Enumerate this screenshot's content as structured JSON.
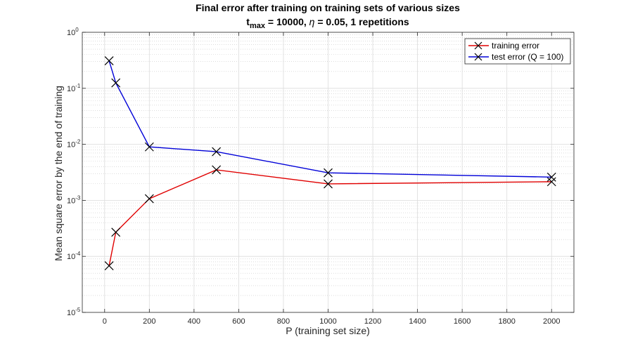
{
  "chart_data": {
    "type": "line",
    "title_line1": "Final error after training on training sets of various sizes",
    "title_line2": {
      "t": "t",
      "t_sub": "max",
      "rest1": " = 10000, ",
      "eta": "η",
      "rest2": " = 0.05, 1 repetitions"
    },
    "xlabel": "P (training set size)",
    "ylabel": "Mean square error by the end of training",
    "xlim": [
      -100,
      2100
    ],
    "ylim": [
      1e-05,
      1
    ],
    "yscale": "log",
    "grid": true,
    "legend_location": "top-right",
    "x_ticks": [
      0,
      200,
      400,
      600,
      800,
      1000,
      1200,
      1400,
      1600,
      1800,
      2000
    ],
    "x_tick_labels": [
      "0",
      "200",
      "400",
      "600",
      "800",
      "1000",
      "1200",
      "1400",
      "1600",
      "1800",
      "2000"
    ],
    "y_ticks": [
      {
        "exp": -5,
        "base": "10",
        "sup": "-5"
      },
      {
        "exp": -4,
        "base": "10",
        "sup": "-4"
      },
      {
        "exp": -3,
        "base": "10",
        "sup": "-3"
      },
      {
        "exp": -2,
        "base": "10",
        "sup": "-2"
      },
      {
        "exp": -1,
        "base": "10",
        "sup": "-1"
      },
      {
        "exp": 0,
        "base": "10",
        "sup": "0"
      }
    ],
    "x": [
      20,
      50,
      200,
      500,
      1000,
      2000
    ],
    "series": [
      {
        "name": "training error",
        "color": "#e00000",
        "marker": "x",
        "values": [
          6.8e-05,
          0.00027,
          0.00107,
          0.0035,
          0.00197,
          0.00215
        ]
      },
      {
        "name": "test error (Q = 100)",
        "color": "#0000d8",
        "marker": "x",
        "values": [
          0.31,
          0.125,
          0.009,
          0.0074,
          0.0031,
          0.0026
        ]
      }
    ]
  }
}
